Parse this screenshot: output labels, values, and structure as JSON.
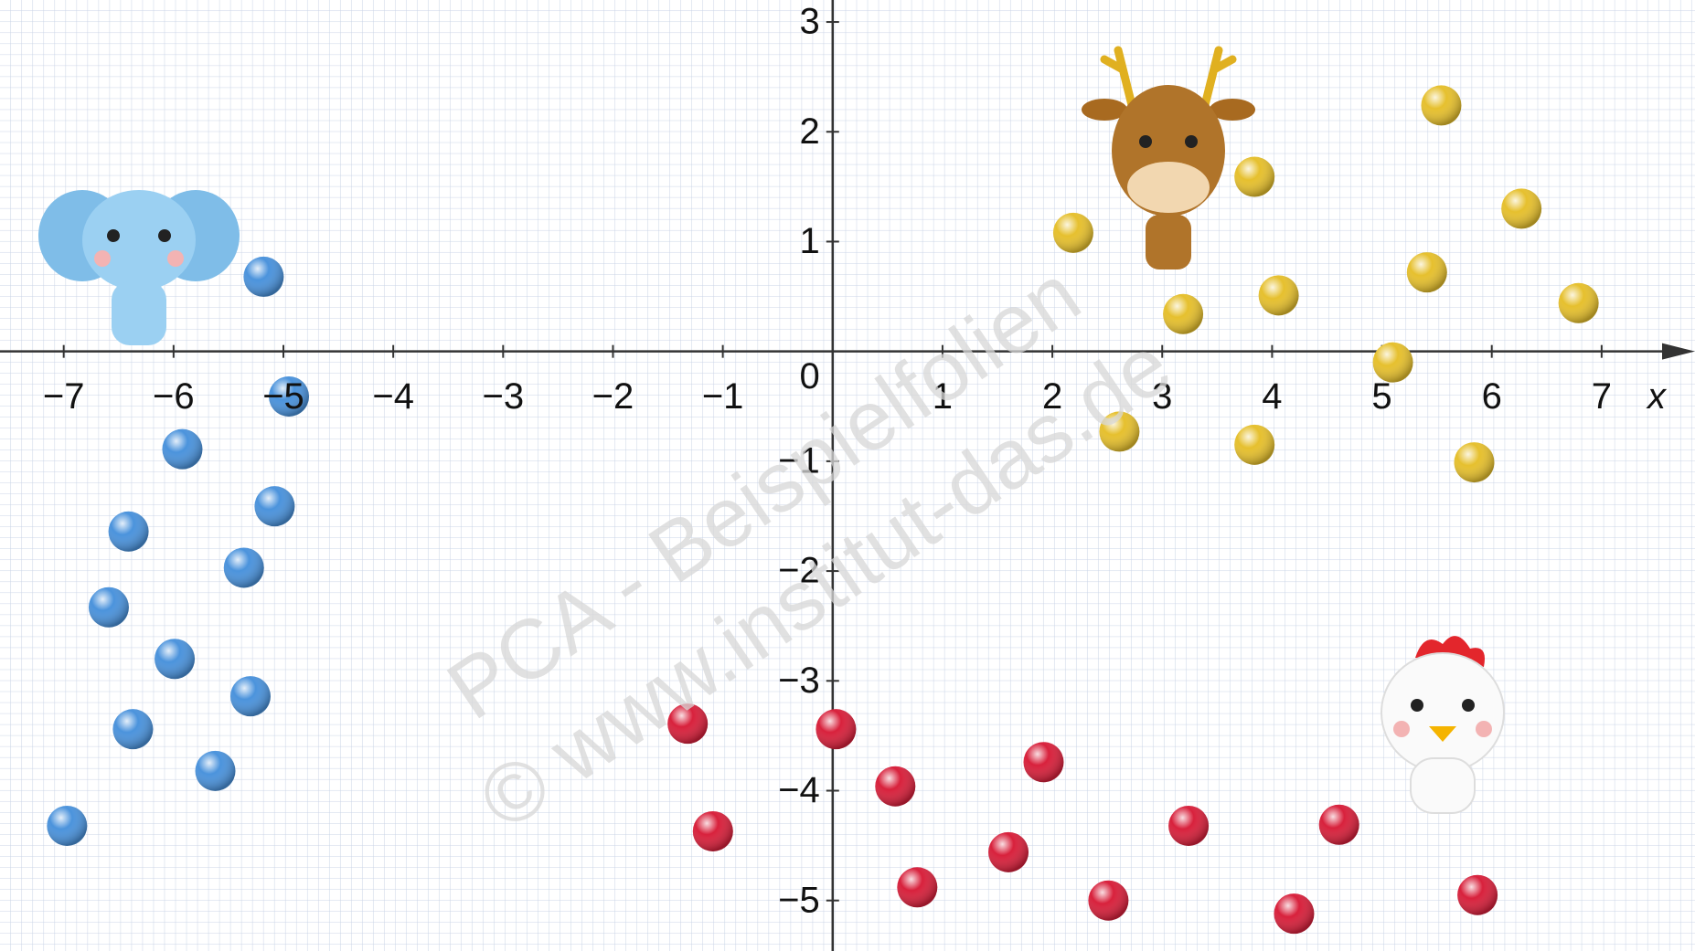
{
  "chart_data": {
    "type": "scatter",
    "watermark": [
      "PCA - Beispielfolien",
      "© www.institut-das.de"
    ],
    "xlabel": "x",
    "xlim": [
      -7.58,
      7.85
    ],
    "ylim": [
      -5.46,
      3.2
    ],
    "xticks": [
      {
        "value": -7,
        "label": "−7"
      },
      {
        "value": -6,
        "label": "−6"
      },
      {
        "value": -5,
        "label": "−5"
      },
      {
        "value": -4,
        "label": "−4"
      },
      {
        "value": -3,
        "label": "−3"
      },
      {
        "value": -2,
        "label": "−2"
      },
      {
        "value": -1,
        "label": "−1"
      },
      1,
      2,
      3,
      4,
      5,
      6,
      7
    ],
    "yticks": [
      {
        "value": -5,
        "label": "−5"
      },
      {
        "value": -4,
        "label": "−4"
      },
      {
        "value": -3,
        "label": "−3"
      },
      {
        "value": -2,
        "label": "−2"
      },
      {
        "value": -1,
        "label": "−1"
      },
      1,
      2,
      3
    ],
    "origin_label": "0",
    "grid": true,
    "series": [
      {
        "name": "Elephant",
        "color": "#4b93dc",
        "x": [
          -5.18,
          -4.95,
          -5.92,
          -5.08,
          -6.41,
          -5.36,
          -6.59,
          -5.99,
          -5.3,
          -6.37,
          -5.62,
          -6.97
        ],
        "values": [
          0.68,
          -0.41,
          -0.89,
          -1.41,
          -1.64,
          -1.97,
          -2.33,
          -2.8,
          -3.14,
          -3.44,
          -3.82,
          -4.32
        ]
      },
      {
        "name": "Deer",
        "color": "#e6c02e",
        "x": [
          5.54,
          3.84,
          6.27,
          2.19,
          5.41,
          4.06,
          3.19,
          6.79,
          5.1,
          2.61,
          3.84,
          5.84
        ],
        "values": [
          2.24,
          1.59,
          1.3,
          1.08,
          0.72,
          0.51,
          0.34,
          0.44,
          -0.1,
          -0.73,
          -0.85,
          -1.01
        ]
      },
      {
        "name": "Chicken",
        "color": "#d8213c",
        "x": [
          -1.32,
          0.03,
          -1.09,
          0.57,
          1.92,
          0.77,
          1.6,
          2.51,
          3.24,
          4.2,
          4.61,
          5.87
        ],
        "values": [
          -3.39,
          -3.44,
          -4.37,
          -3.96,
          -3.74,
          -4.88,
          -4.56,
          -5.0,
          -4.32,
          -5.12,
          -4.31,
          -4.95
        ]
      }
    ]
  }
}
